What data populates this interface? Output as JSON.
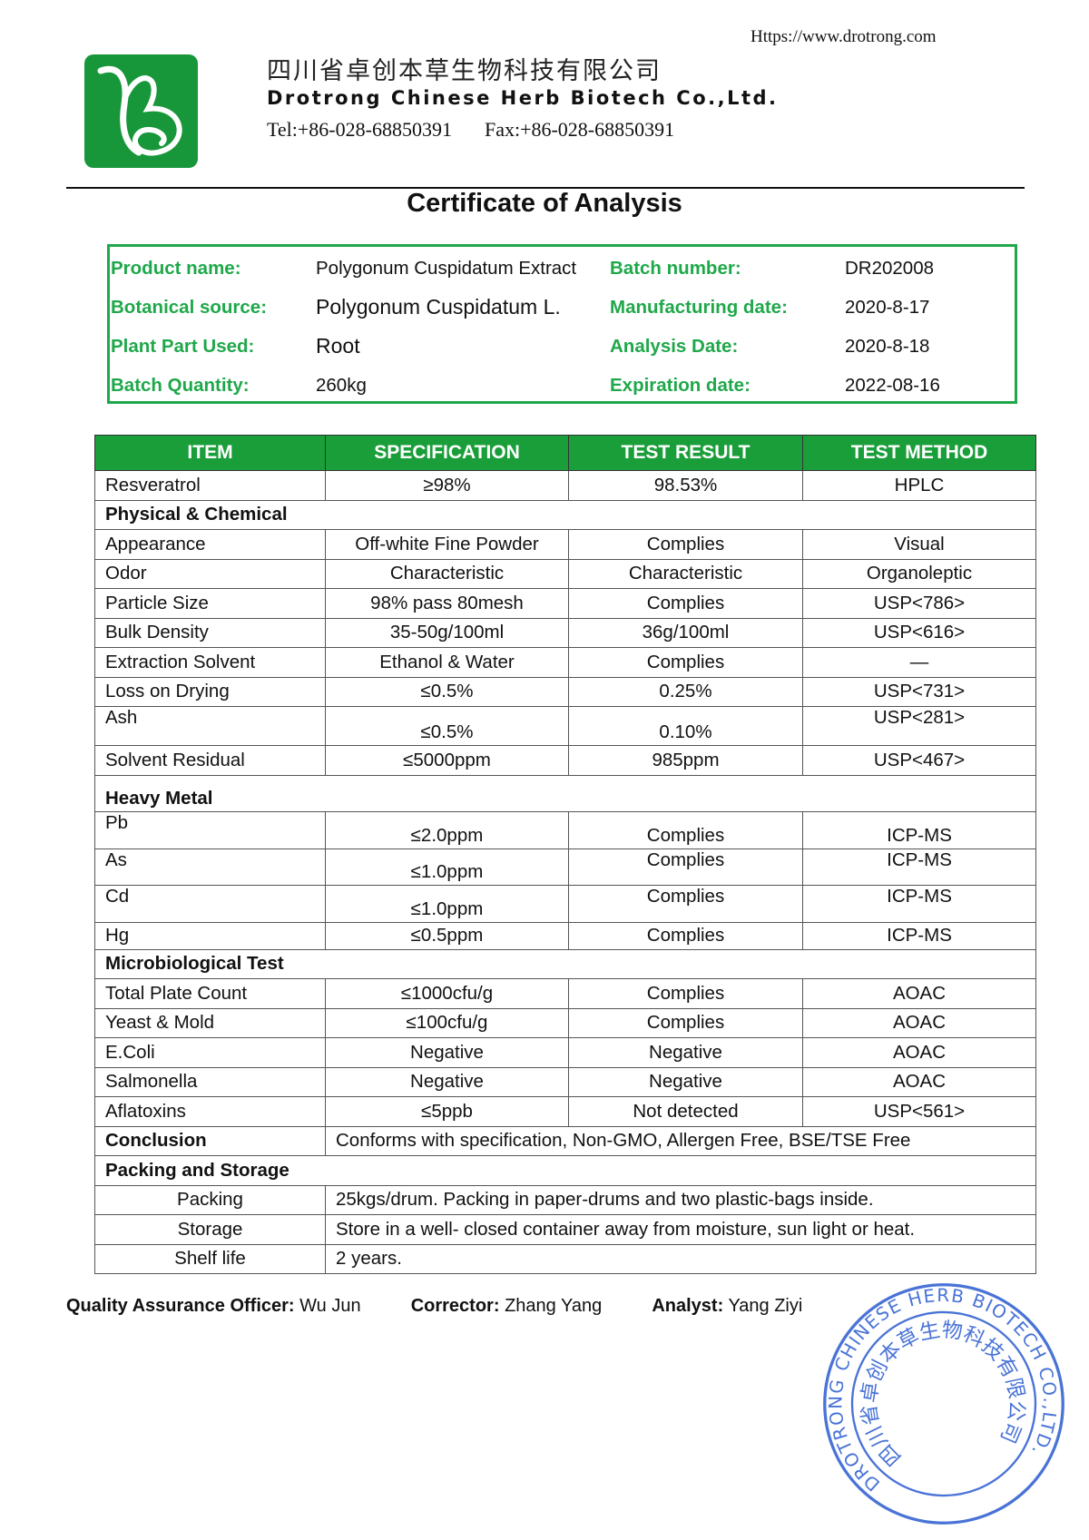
{
  "header": {
    "url": "Https://www.drotrong.com",
    "company_cn": "四川省卓创本草生物科技有限公司",
    "company_en": "Drotrong Chinese Herb Biotech Co.,Ltd.",
    "tel": "Tel:+86-028-68850391",
    "fax": "Fax:+86-028-68850391",
    "logo_color": "#17963a"
  },
  "title": "Certificate of Analysis",
  "info": {
    "product_name_label": "Product name:",
    "product_name": "Polygonum Cuspidatum Extract",
    "botanical_source_label": "Botanical source:",
    "botanical_source": "Polygonum Cuspidatum L.",
    "plant_part_label": "Plant Part Used:",
    "plant_part": "Root",
    "batch_quantity_label": "Batch Quantity:",
    "batch_quantity": "260kg",
    "batch_number_label": "Batch number:",
    "batch_number": "DR202008",
    "manufacturing_date_label": "Manufacturing date:",
    "manufacturing_date": "2020-8-17",
    "analysis_date_label": "Analysis Date:",
    "analysis_date": "2020-8-18",
    "expiration_date_label": "Expiration date:",
    "expiration_date": "2022-08-16"
  },
  "table": {
    "headers": [
      "ITEM",
      "SPECIFICATION",
      "TEST RESULT",
      "TEST METHOD"
    ],
    "rows": [
      {
        "cells": [
          "Resveratrol",
          "≥98%",
          "98.53%",
          "HPLC"
        ]
      },
      {
        "section": "Physical & Chemical"
      },
      {
        "cells": [
          "Appearance",
          "Off-white Fine Powder",
          "Complies",
          "Visual"
        ]
      },
      {
        "cells": [
          "Odor",
          "Characteristic",
          "Characteristic",
          "Organoleptic"
        ]
      },
      {
        "cells": [
          "Particle Size",
          "98% pass 80mesh",
          "Complies",
          "USP<786>"
        ]
      },
      {
        "cells": [
          "Bulk Density",
          "35-50g/100ml",
          "36g/100ml",
          "USP<616>"
        ]
      },
      {
        "cells": [
          "Extraction Solvent",
          "Ethanol & Water",
          "Complies",
          "—"
        ]
      },
      {
        "cells": [
          "Loss on Drying",
          "≤0.5%",
          "0.25%",
          "USP<731>"
        ]
      },
      {
        "cells": [
          "Ash",
          "≤0.5%",
          "0.10%",
          "USP<281>"
        ]
      },
      {
        "cells": [
          "Solvent Residual",
          "≤5000ppm",
          "985ppm",
          "USP<467>"
        ]
      },
      {
        "section": "Heavy Metal"
      },
      {
        "cells": [
          "Pb",
          "≤2.0ppm",
          "Complies",
          "ICP-MS"
        ]
      },
      {
        "cells": [
          "As",
          "≤1.0ppm",
          "Complies",
          "ICP-MS"
        ]
      },
      {
        "cells": [
          "Cd",
          "≤1.0ppm",
          "Complies",
          "ICP-MS"
        ]
      },
      {
        "cells": [
          "Hg",
          "≤0.5ppm",
          "Complies",
          "ICP-MS"
        ]
      },
      {
        "section": "Microbiological Test"
      },
      {
        "cells": [
          "Total Plate Count",
          "≤1000cfu/g",
          "Complies",
          "AOAC"
        ]
      },
      {
        "cells": [
          "Yeast & Mold",
          "≤100cfu/g",
          "Complies",
          "AOAC"
        ]
      },
      {
        "cells": [
          "E.Coli",
          "Negative",
          "Negative",
          "AOAC"
        ]
      },
      {
        "cells": [
          "Salmonella",
          "Negative",
          "Negative",
          "AOAC"
        ]
      },
      {
        "cells": [
          "Aflatoxins",
          "≤5ppb",
          "Not detected",
          "USP<561>"
        ]
      },
      {
        "label": "Conclusion",
        "text": "Conforms with specification, Non-GMO, Allergen Free, BSE/TSE Free"
      },
      {
        "section": "Packing and Storage"
      },
      {
        "sublabel": "Packing",
        "text": "25kgs/drum. Packing in paper-drums and two plastic-bags inside."
      },
      {
        "sublabel": "Storage",
        "text": "Store in a well- closed container away from moisture, sun light or heat."
      },
      {
        "sublabel": "Shelf life",
        "text": "2 years."
      }
    ],
    "header_color": "#1a9e3a"
  },
  "signatures": {
    "qa_label": "Quality Assurance Officer:",
    "qa_name": "Wu Jun",
    "corrector_label": "Corrector:",
    "corrector_name": "Zhang Yang",
    "analyst_label": "Analyst:",
    "analyst_name": "Yang Ziyi"
  },
  "stamp": {
    "outer_text": "DROTRONG CHINESE HERB BIOTECH CO.,LTD.",
    "inner_text": "四川省卓创本草生物科技有限公司",
    "color": "#2a5bd0"
  }
}
